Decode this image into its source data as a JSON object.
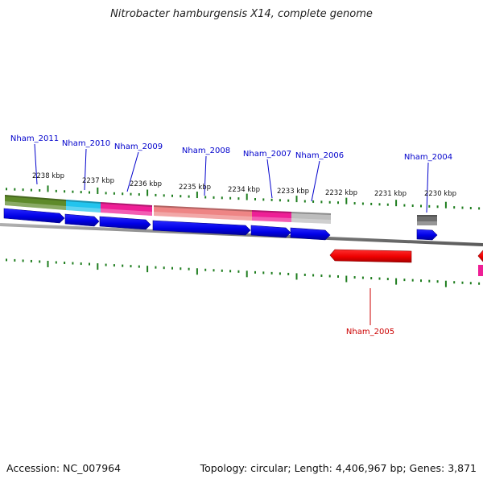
{
  "title": "Nitrobacter hamburgensis X14, complete genome",
  "footer": {
    "accession": "Accession: NC_007964",
    "topology": "Topology: circular; Length: 4,406,967 bp; Genes: 3,871"
  },
  "colors": {
    "backbone": "#8a8a8a",
    "tick": "#1e7d1e",
    "cds_forward": "#0000ee",
    "cds_reverse": "#ee0000",
    "label_forward": "#0000cc",
    "label_reverse": "#cc0000",
    "cog_olive": "#5e8a2a",
    "cog_cyan": "#22c4ee",
    "cog_pink": "#ee1f96",
    "cog_salmon": "#ee8585",
    "cog_gray": "#bdbdbd",
    "cog_darkgray": "#6f6f6f"
  },
  "scale": {
    "tick_labels": [
      "2238 kbp",
      "2237 kbp",
      "2236 kbp",
      "2235 kbp",
      "2234 kbp",
      "2233 kbp",
      "2232 kbp",
      "2231 kbp",
      "2230 kbp"
    ]
  },
  "genes": {
    "forward": [
      {
        "label": "Nham_2011",
        "cog": "cog_olive"
      },
      {
        "label": "Nham_2010",
        "cog": "cog_cyan"
      },
      {
        "label": "Nham_2009",
        "cog": "cog_pink"
      },
      {
        "label": "Nham_2008",
        "cog": "cog_salmon"
      },
      {
        "label": "Nham_2007",
        "cog": "cog_pink"
      },
      {
        "label": "Nham_2006",
        "cog": "cog_gray"
      },
      {
        "label": "Nham_2004",
        "cog": "cog_darkgray"
      }
    ],
    "reverse": [
      {
        "label": "Nham_2005"
      }
    ]
  }
}
